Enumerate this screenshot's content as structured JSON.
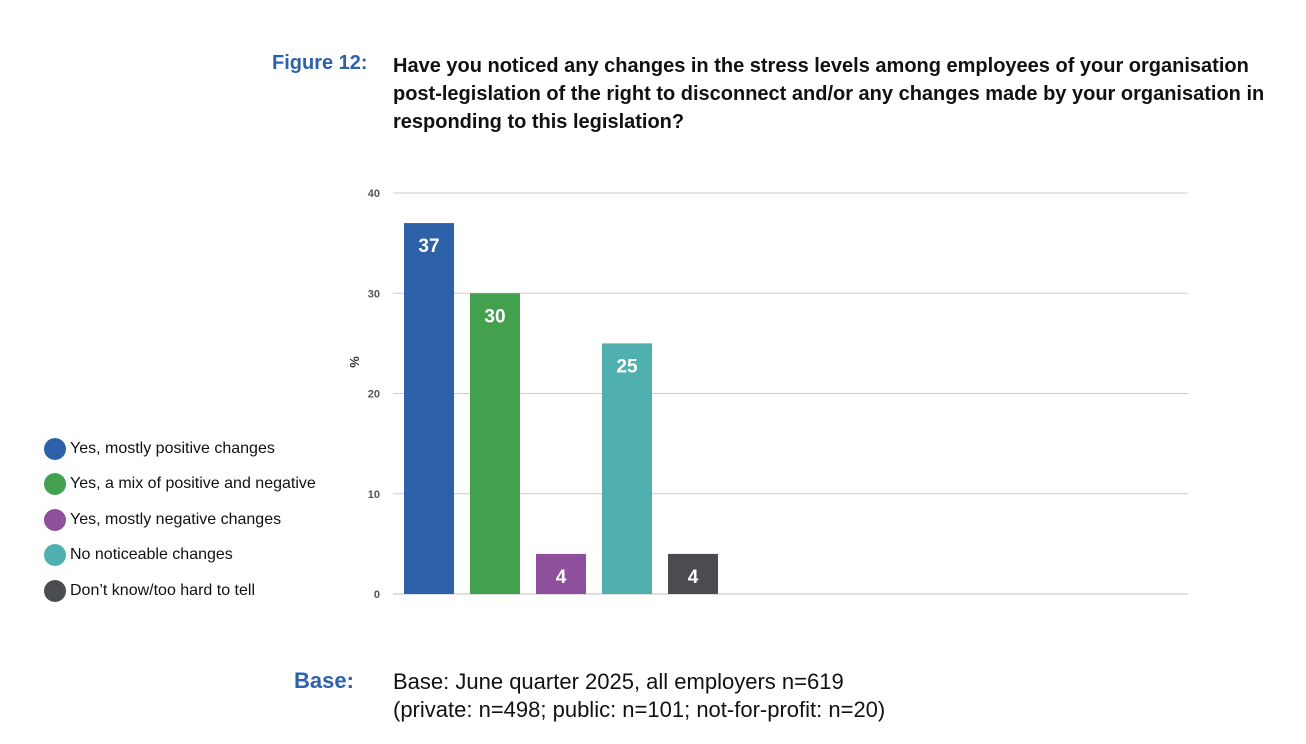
{
  "figure": {
    "label": "Figure 12:",
    "title": "Have you noticed any changes in the stress levels among employees of your organisation post-legislation of the right to disconnect and/or any changes made by your organisation in responding to this legislation?"
  },
  "chart_data": {
    "type": "bar",
    "title": "Have you noticed any changes in the stress levels among employees of your organisation post-legislation of the right to disconnect and/or any changes made by your organisation in responding to this legislation?",
    "ylabel": "%",
    "ylim": [
      0,
      40
    ],
    "yticks": [
      0,
      10,
      20,
      30,
      40
    ],
    "grid": true,
    "legend_position": "left",
    "categories": [
      "Yes, mostly positive changes",
      "Yes, a mix of positive and negative",
      "Yes, mostly negative changes",
      "No noticeable changes",
      "Don’t know/too hard to tell"
    ],
    "values": [
      37,
      30,
      4,
      25,
      4
    ],
    "colors": [
      "#2d62ab",
      "#43a04f",
      "#8e4f9c",
      "#4fb0af",
      "#4b4c50"
    ]
  },
  "base": {
    "label": "Base:",
    "lines": [
      "Base: June quarter 2025, all employers n=619",
      "(private: n=498; public: n=101; not-for-profit: n=20)"
    ]
  }
}
